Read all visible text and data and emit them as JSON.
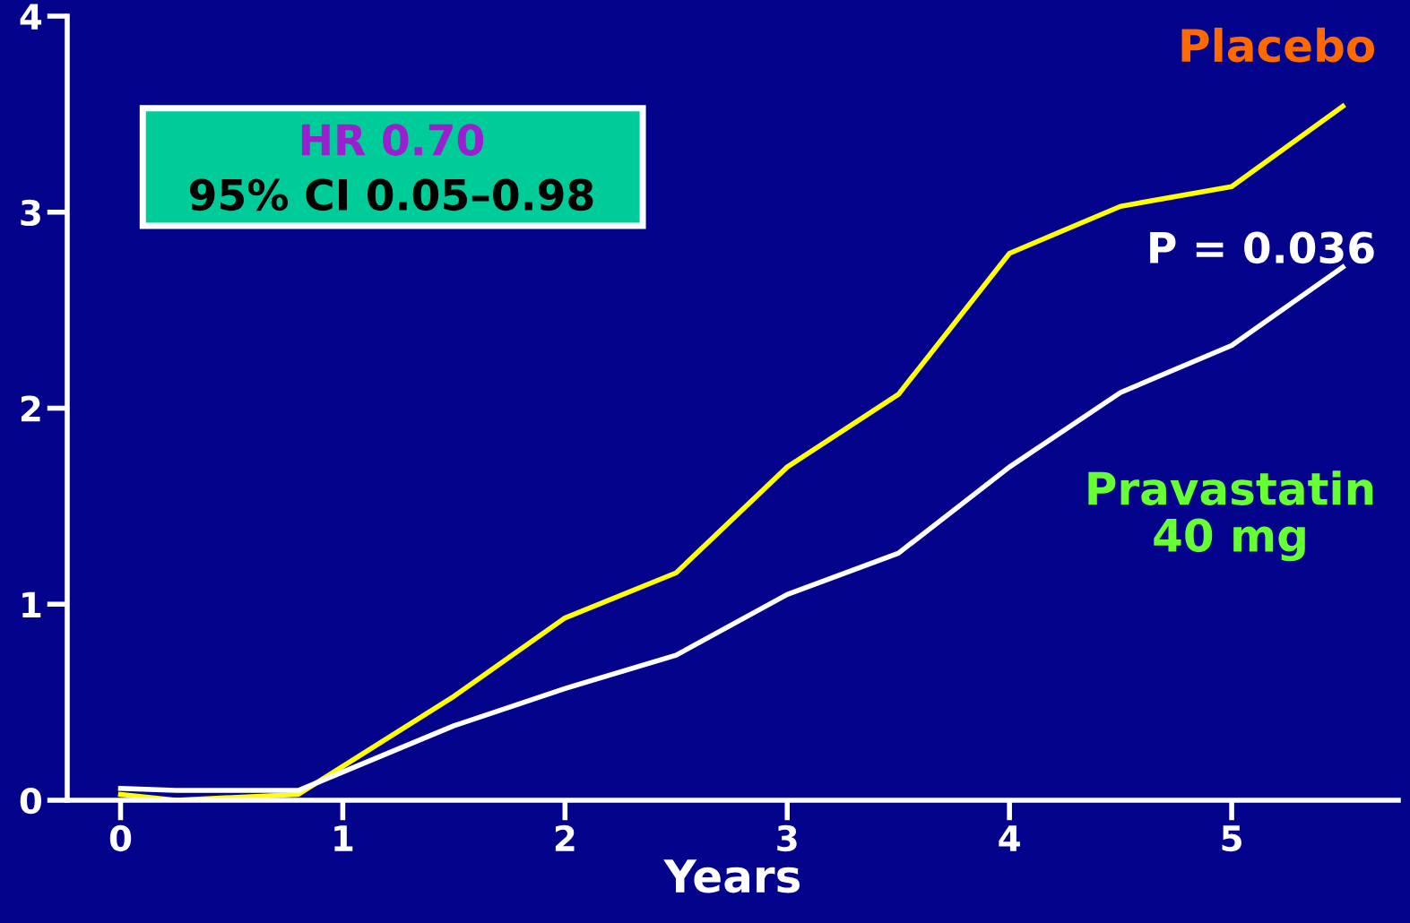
{
  "chart_data": {
    "type": "line",
    "xlabel": "Years",
    "xlim": [
      -0.24,
      5.75
    ],
    "ylim": [
      0,
      4
    ],
    "xticks": [
      0,
      1,
      2,
      3,
      4,
      5
    ],
    "yticks": [
      0,
      1,
      2,
      3,
      4
    ],
    "grid": false,
    "legend": false,
    "marker": "none",
    "line_style": "solid",
    "series": [
      {
        "name": "Placebo",
        "color": "#ffff00",
        "x": [
          0,
          0.25,
          0.8,
          1.5,
          2,
          2.5,
          3,
          3.5,
          4,
          4.5,
          5,
          5.5
        ],
        "values": [
          0.03,
          0.0,
          0.03,
          0.53,
          0.93,
          1.16,
          1.7,
          2.07,
          2.79,
          3.03,
          3.13,
          3.54
        ]
      },
      {
        "name": "Pravastatin 40 mg",
        "color": "#ffffff",
        "x": [
          0,
          0.25,
          0.8,
          1.5,
          2,
          2.5,
          3,
          3.5,
          4,
          4.5,
          5,
          5.5
        ],
        "values": [
          0.06,
          0.05,
          0.05,
          0.38,
          0.57,
          0.74,
          1.05,
          1.26,
          1.7,
          2.08,
          2.32,
          2.72
        ]
      }
    ],
    "annotations": [
      "HR 0.70",
      "95% CI 0.05–0.98",
      "P = 0.036"
    ]
  }
}
